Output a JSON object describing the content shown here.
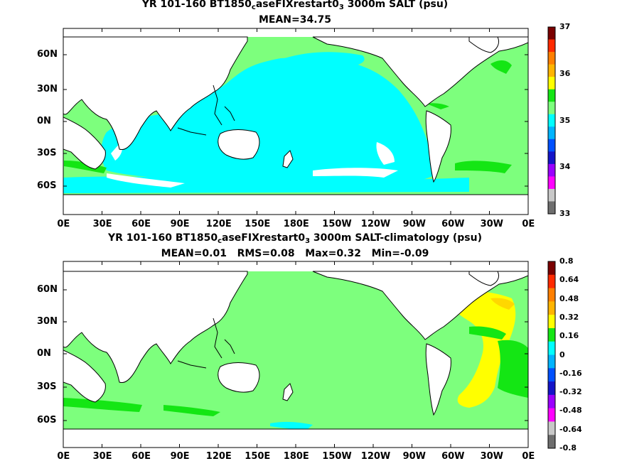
{
  "panels": [
    {
      "title_pre": "YR 101-160 BT1850",
      "title_sub1": "c",
      "title_mid": "aseFIXrestart0",
      "title_sub2": "3",
      "title_post": " 3000m SALT (psu)",
      "stats": "MEAN=34.75",
      "colorbar_labels": [
        "37",
        "36",
        "35",
        "34",
        "33"
      ],
      "colorbar_colors": [
        "#7a0000",
        "#ff2a00",
        "#ff7f00",
        "#ffb400",
        "#ffff00",
        "#14e614",
        "#7dff7d",
        "#00ffff",
        "#00b4ff",
        "#0050ff",
        "#1414c8",
        "#9a00ff",
        "#ff00ff",
        "#c8c8c8",
        "#6e6e6e"
      ]
    },
    {
      "title_pre": "YR 101-160 BT1850",
      "title_sub1": "c",
      "title_mid": "aseFIXrestart0",
      "title_sub2": "3",
      "title_post": " 3000m SALT-climatology (psu)",
      "stats": "MEAN=0.01   RMS=0.08   Max=0.32   Min=-0.09",
      "colorbar_labels": [
        "0.8",
        "0.64",
        "0.48",
        "0.32",
        "0.16",
        "0",
        "-0.16",
        "-0.32",
        "-0.48",
        "-0.64",
        "-0.8"
      ],
      "colorbar_colors": [
        "#7a0000",
        "#ff2a00",
        "#ff7f00",
        "#ffb400",
        "#ffff00",
        "#14e614",
        "#00ffff",
        "#00b4ff",
        "#0050ff",
        "#1414c8",
        "#9a00ff",
        "#ff00ff",
        "#c8c8c8",
        "#6e6e6e"
      ]
    }
  ],
  "lat_labels": [
    "60N",
    "30N",
    "0N",
    "30S",
    "60S"
  ],
  "lon_labels": [
    "0E",
    "30E",
    "60E",
    "90E",
    "120E",
    "150E",
    "180E",
    "150W",
    "120W",
    "90W",
    "60W",
    "30W",
    "0E"
  ],
  "colors": {
    "cyan": "#00ffff",
    "light_green": "#7dff7d",
    "green": "#14e614",
    "yellow": "#ffff00",
    "gold": "#ffd700",
    "land": "#ffffff",
    "coast": "#000000"
  }
}
